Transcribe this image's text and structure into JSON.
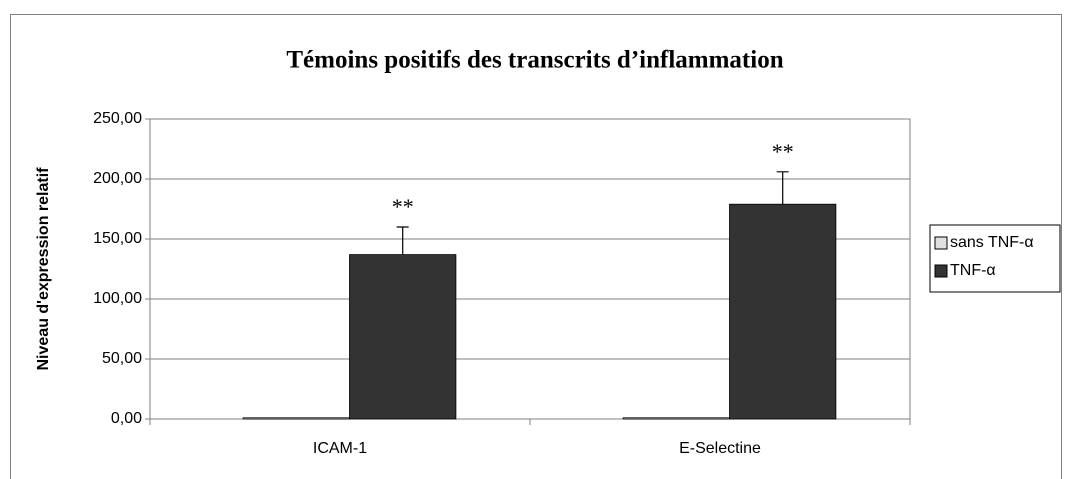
{
  "chart_data": {
    "type": "bar",
    "title": "Témoins positifs des transcrits d’inflammation",
    "y_label": "Niveau d'expression relatif",
    "categories": [
      "ICAM-1",
      "E-Selectine"
    ],
    "series": [
      {
        "name": "sans TNF-α",
        "color": "#e0e0e0",
        "values": [
          1,
          1
        ]
      },
      {
        "name": "TNF-α",
        "color": "#333333",
        "values": [
          137,
          179
        ],
        "errors": [
          23,
          27
        ]
      }
    ],
    "annotations": [
      "**",
      "**"
    ],
    "ylim": [
      0,
      250
    ],
    "yticks": [
      {
        "value": 0,
        "label": "0,00"
      },
      {
        "value": 50,
        "label": "50,00"
      },
      {
        "value": 100,
        "label": "100,00"
      },
      {
        "value": 150,
        "label": "150,00"
      },
      {
        "value": 200,
        "label": "200,00"
      },
      {
        "value": 250,
        "label": "250,00"
      }
    ],
    "grid": true,
    "legend": "right"
  }
}
